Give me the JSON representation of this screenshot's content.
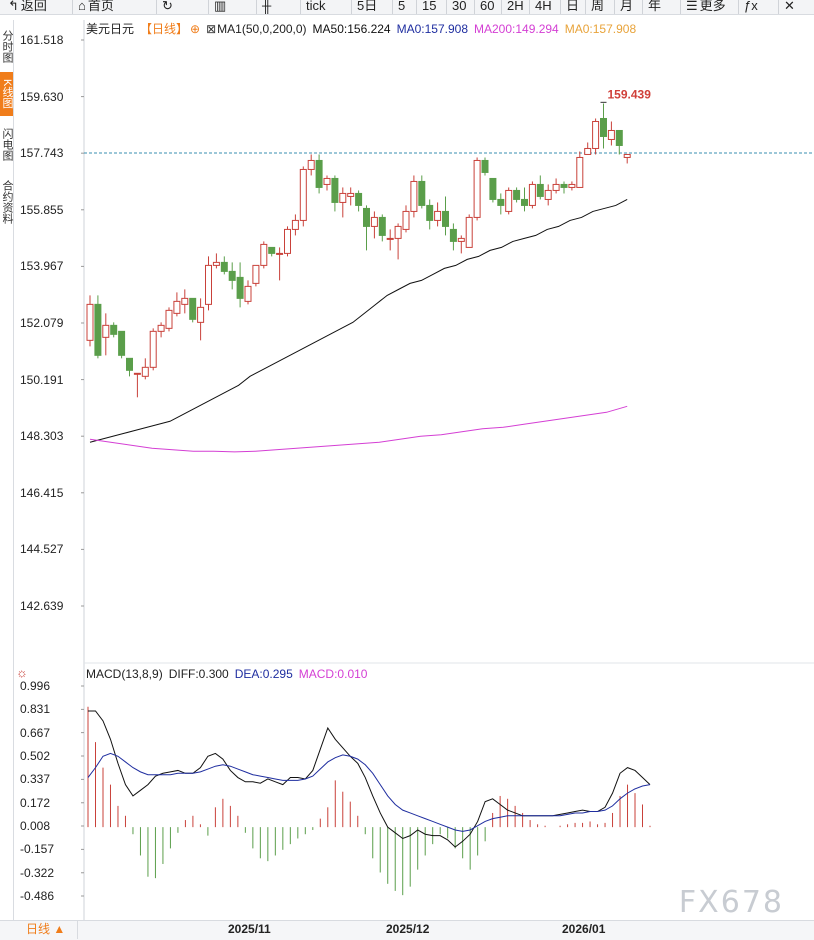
{
  "toolbar": {
    "items": [
      {
        "label": "返回",
        "icon": "back-arrow-icon"
      },
      {
        "label": "首页",
        "icon": "home-icon"
      },
      {
        "label": "",
        "icon": "refresh-icon"
      },
      {
        "label": "",
        "icon": "bar-chart-icon"
      },
      {
        "label": "",
        "icon": "candlestick-icon"
      },
      {
        "label": "tick"
      },
      {
        "label": "5日"
      },
      {
        "label": "5"
      },
      {
        "label": "15"
      },
      {
        "label": "30"
      },
      {
        "label": "60"
      },
      {
        "label": "2H"
      },
      {
        "label": "4H"
      },
      {
        "label": "日"
      },
      {
        "label": "周"
      },
      {
        "label": "月"
      },
      {
        "label": "年"
      },
      {
        "label": "更多",
        "icon": "menu-icon"
      },
      {
        "label": "",
        "icon": "formula-icon"
      },
      {
        "label": "",
        "icon": "close-icon"
      }
    ]
  },
  "side_tabs": [
    "分时图",
    "K线图",
    "闪电图",
    "合约资料"
  ],
  "legend": {
    "symbol": "美元日元",
    "period": "【日线】",
    "indicator": "MA1(50,0,200,0)",
    "ma50": "MA50:156.224",
    "ma0": "MA0:157.908",
    "ma200": "MA200:149.294",
    "ma0b": "MA0:157.908"
  },
  "macd_legend": {
    "name": "MACD(13,8,9)",
    "diff": "DIFF:0.300",
    "dea": "DEA:0.295",
    "macd": "MACD:0.010"
  },
  "bottom": {
    "period_button": "日线 ▲",
    "watermark": "FX678"
  },
  "colors": {
    "up": "#c9413a",
    "down": "#5a9e4a",
    "ma50": "#111111",
    "ma200": "#d43fd4",
    "dea": "#1f2ea0",
    "macd": "#d43fd4",
    "accent": "#f07d1a",
    "current_price_line": "#3a8fb0"
  },
  "chart_data": [
    {
      "type": "candlestick",
      "title": "美元日元【日线】",
      "y_ticks": [
        "161.518",
        "159.630",
        "157.743",
        "155.855",
        "153.967",
        "152.079",
        "150.191",
        "148.303",
        "146.415",
        "144.527",
        "142.639"
      ],
      "x_tick_labels": [
        "2025/11",
        "2025/12",
        "2026/01"
      ],
      "ylim": [
        141.5,
        162.2
      ],
      "high_annotation": "159.439",
      "current_price": 157.75,
      "candles": [
        {
          "o": 151.5,
          "h": 153.0,
          "l": 151.3,
          "c": 152.7
        },
        {
          "o": 152.7,
          "h": 153.0,
          "l": 150.9,
          "c": 151.0
        },
        {
          "o": 151.6,
          "h": 152.4,
          "l": 151.0,
          "c": 152.0
        },
        {
          "o": 152.0,
          "h": 152.1,
          "l": 151.6,
          "c": 151.7
        },
        {
          "o": 151.8,
          "h": 151.8,
          "l": 150.9,
          "c": 151.0
        },
        {
          "o": 150.9,
          "h": 150.9,
          "l": 150.3,
          "c": 150.5
        },
        {
          "o": 150.4,
          "h": 150.4,
          "l": 149.6,
          "c": 150.4
        },
        {
          "o": 150.3,
          "h": 150.9,
          "l": 150.2,
          "c": 150.6
        },
        {
          "o": 150.6,
          "h": 151.9,
          "l": 150.5,
          "c": 151.8
        },
        {
          "o": 151.8,
          "h": 152.1,
          "l": 151.6,
          "c": 152.0
        },
        {
          "o": 151.9,
          "h": 152.6,
          "l": 151.8,
          "c": 152.5
        },
        {
          "o": 152.4,
          "h": 153.1,
          "l": 152.3,
          "c": 152.8
        },
        {
          "o": 152.7,
          "h": 153.2,
          "l": 152.4,
          "c": 152.9
        },
        {
          "o": 152.9,
          "h": 152.9,
          "l": 152.1,
          "c": 152.2
        },
        {
          "o": 152.1,
          "h": 152.9,
          "l": 151.5,
          "c": 152.6
        },
        {
          "o": 152.7,
          "h": 154.3,
          "l": 152.5,
          "c": 154.0
        },
        {
          "o": 154.0,
          "h": 154.4,
          "l": 153.9,
          "c": 154.1
        },
        {
          "o": 154.1,
          "h": 154.3,
          "l": 153.7,
          "c": 153.8
        },
        {
          "o": 153.8,
          "h": 154.1,
          "l": 153.2,
          "c": 153.5
        },
        {
          "o": 153.6,
          "h": 154.1,
          "l": 152.6,
          "c": 152.9
        },
        {
          "o": 152.8,
          "h": 153.5,
          "l": 152.7,
          "c": 153.3
        },
        {
          "o": 153.4,
          "h": 154.0,
          "l": 153.3,
          "c": 154.0
        },
        {
          "o": 154.0,
          "h": 154.8,
          "l": 153.9,
          "c": 154.7
        },
        {
          "o": 154.6,
          "h": 154.6,
          "l": 154.3,
          "c": 154.4
        },
        {
          "o": 154.4,
          "h": 154.6,
          "l": 153.5,
          "c": 154.4
        },
        {
          "o": 154.4,
          "h": 155.3,
          "l": 154.3,
          "c": 155.2
        },
        {
          "o": 155.2,
          "h": 155.7,
          "l": 155.0,
          "c": 155.5
        },
        {
          "o": 155.5,
          "h": 157.3,
          "l": 155.3,
          "c": 157.2
        },
        {
          "o": 157.2,
          "h": 157.7,
          "l": 157.0,
          "c": 157.5
        },
        {
          "o": 157.5,
          "h": 157.7,
          "l": 156.4,
          "c": 156.6
        },
        {
          "o": 156.7,
          "h": 157.0,
          "l": 156.5,
          "c": 156.9
        },
        {
          "o": 156.9,
          "h": 157.0,
          "l": 155.8,
          "c": 156.1
        },
        {
          "o": 156.1,
          "h": 156.6,
          "l": 155.6,
          "c": 156.4
        },
        {
          "o": 156.3,
          "h": 156.6,
          "l": 156.0,
          "c": 156.4
        },
        {
          "o": 156.4,
          "h": 156.5,
          "l": 155.8,
          "c": 156.0
        },
        {
          "o": 155.9,
          "h": 156.0,
          "l": 154.5,
          "c": 155.3
        },
        {
          "o": 155.3,
          "h": 155.8,
          "l": 154.9,
          "c": 155.6
        },
        {
          "o": 155.6,
          "h": 155.7,
          "l": 154.8,
          "c": 155.0
        },
        {
          "o": 154.9,
          "h": 155.2,
          "l": 154.5,
          "c": 154.9
        },
        {
          "o": 154.9,
          "h": 155.4,
          "l": 154.2,
          "c": 155.3
        },
        {
          "o": 155.2,
          "h": 156.0,
          "l": 155.1,
          "c": 155.8
        },
        {
          "o": 155.8,
          "h": 157.0,
          "l": 155.6,
          "c": 156.8
        },
        {
          "o": 156.8,
          "h": 157.0,
          "l": 155.9,
          "c": 156.0
        },
        {
          "o": 156.0,
          "h": 156.2,
          "l": 155.2,
          "c": 155.5
        },
        {
          "o": 155.5,
          "h": 156.1,
          "l": 155.3,
          "c": 155.8
        },
        {
          "o": 155.8,
          "h": 156.3,
          "l": 155.0,
          "c": 155.3
        },
        {
          "o": 155.2,
          "h": 155.4,
          "l": 154.5,
          "c": 154.8
        },
        {
          "o": 154.8,
          "h": 155.0,
          "l": 154.4,
          "c": 154.9
        },
        {
          "o": 154.6,
          "h": 155.7,
          "l": 154.6,
          "c": 155.6
        },
        {
          "o": 155.6,
          "h": 157.6,
          "l": 155.5,
          "c": 157.5
        },
        {
          "o": 157.5,
          "h": 157.6,
          "l": 157.0,
          "c": 157.1
        },
        {
          "o": 156.9,
          "h": 156.9,
          "l": 156.1,
          "c": 156.2
        },
        {
          "o": 156.2,
          "h": 156.4,
          "l": 155.7,
          "c": 156.0
        },
        {
          "o": 155.8,
          "h": 156.6,
          "l": 155.7,
          "c": 156.5
        },
        {
          "o": 156.5,
          "h": 156.6,
          "l": 156.1,
          "c": 156.2
        },
        {
          "o": 156.2,
          "h": 156.6,
          "l": 155.8,
          "c": 156.0
        },
        {
          "o": 156.0,
          "h": 156.8,
          "l": 155.9,
          "c": 156.7
        },
        {
          "o": 156.7,
          "h": 157.0,
          "l": 156.2,
          "c": 156.3
        },
        {
          "o": 156.2,
          "h": 156.7,
          "l": 156.0,
          "c": 156.5
        },
        {
          "o": 156.5,
          "h": 156.9,
          "l": 156.4,
          "c": 156.7
        },
        {
          "o": 156.7,
          "h": 156.8,
          "l": 156.4,
          "c": 156.6
        },
        {
          "o": 156.6,
          "h": 156.8,
          "l": 156.5,
          "c": 156.7
        },
        {
          "o": 156.6,
          "h": 157.8,
          "l": 156.6,
          "c": 157.6
        },
        {
          "o": 157.7,
          "h": 158.1,
          "l": 157.7,
          "c": 157.9
        },
        {
          "o": 157.9,
          "h": 158.9,
          "l": 157.7,
          "c": 158.8
        },
        {
          "o": 158.9,
          "h": 159.4,
          "l": 157.9,
          "c": 158.3
        },
        {
          "o": 158.2,
          "h": 158.8,
          "l": 158.0,
          "c": 158.5
        },
        {
          "o": 158.5,
          "h": 158.5,
          "l": 157.7,
          "c": 158.0
        },
        {
          "o": 157.6,
          "h": 157.7,
          "l": 157.4,
          "c": 157.7
        }
      ],
      "ma50": [
        148.1,
        148.2,
        148.3,
        148.4,
        148.5,
        148.6,
        148.7,
        148.8,
        149.0,
        149.2,
        149.4,
        149.6,
        149.8,
        150.0,
        150.3,
        150.5,
        150.7,
        150.9,
        151.1,
        151.3,
        151.5,
        151.7,
        151.9,
        152.1,
        152.4,
        152.7,
        153.0,
        153.2,
        153.4,
        153.5,
        153.7,
        153.9,
        154.0,
        154.2,
        154.3,
        154.5,
        154.6,
        154.8,
        154.9,
        155.0,
        155.2,
        155.3,
        155.5,
        155.6,
        155.8,
        155.9,
        156.0,
        156.2
      ],
      "ma200": [
        148.2,
        148.1,
        148.0,
        147.9,
        147.85,
        147.8,
        147.8,
        147.78,
        147.8,
        147.85,
        147.9,
        147.95,
        148.0,
        148.05,
        148.1,
        148.2,
        148.3,
        148.35,
        148.45,
        148.55,
        148.6,
        148.7,
        148.8,
        148.9,
        149.0,
        149.1,
        149.3
      ]
    },
    {
      "type": "bar",
      "title": "MACD(13,8,9)",
      "y_ticks": [
        "0.996",
        "0.831",
        "0.667",
        "0.502",
        "0.337",
        "0.172",
        "0.008",
        "-0.157",
        "-0.322",
        "-0.486"
      ],
      "ylim": [
        -0.6,
        1.1
      ],
      "macd": [
        0.85,
        0.6,
        0.42,
        0.3,
        0.15,
        0.08,
        -0.05,
        -0.2,
        -0.35,
        -0.36,
        -0.26,
        -0.15,
        -0.04,
        0.05,
        0.08,
        0.02,
        -0.06,
        0.14,
        0.2,
        0.15,
        0.08,
        -0.04,
        -0.15,
        -0.22,
        -0.24,
        -0.2,
        -0.16,
        -0.12,
        -0.08,
        -0.05,
        -0.02,
        0.06,
        0.14,
        0.33,
        0.25,
        0.18,
        0.08,
        -0.05,
        -0.22,
        -0.32,
        -0.4,
        -0.45,
        -0.48,
        -0.42,
        -0.3,
        -0.2,
        -0.12,
        -0.05,
        -0.08,
        -0.15,
        -0.22,
        -0.3,
        -0.2,
        -0.1,
        0.1,
        0.22,
        0.2,
        0.15,
        0.1,
        0.05,
        0.02,
        0.01,
        0.0,
        0.01,
        0.02,
        0.03,
        0.03,
        0.04,
        0.02,
        0.03,
        0.1,
        0.22,
        0.3,
        0.24,
        0.16,
        0.01
      ],
      "diff": [
        0.82,
        0.82,
        0.75,
        0.62,
        0.45,
        0.3,
        0.22,
        0.26,
        0.3,
        0.36,
        0.38,
        0.39,
        0.4,
        0.38,
        0.38,
        0.42,
        0.5,
        0.52,
        0.48,
        0.4,
        0.35,
        0.32,
        0.32,
        0.31,
        0.34,
        0.32,
        0.3,
        0.35,
        0.35,
        0.34,
        0.4,
        0.55,
        0.7,
        0.62,
        0.56,
        0.5,
        0.45,
        0.35,
        0.22,
        0.1,
        0.0,
        -0.04,
        -0.08,
        -0.06,
        -0.02,
        -0.05,
        -0.06,
        -0.06,
        -0.09,
        -0.14,
        -0.1,
        -0.05,
        0.04,
        0.18,
        0.2,
        0.16,
        0.12,
        0.1,
        0.08,
        0.08,
        0.08,
        0.08,
        0.08,
        0.09,
        0.1,
        0.11,
        0.12,
        0.11,
        0.11,
        0.14,
        0.24,
        0.38,
        0.42,
        0.4,
        0.35,
        0.3
      ],
      "dea": [
        0.35,
        0.42,
        0.5,
        0.52,
        0.5,
        0.46,
        0.42,
        0.39,
        0.37,
        0.37,
        0.37,
        0.37,
        0.38,
        0.38,
        0.38,
        0.39,
        0.41,
        0.43,
        0.44,
        0.43,
        0.41,
        0.39,
        0.37,
        0.36,
        0.35,
        0.34,
        0.33,
        0.33,
        0.33,
        0.34,
        0.36,
        0.41,
        0.46,
        0.49,
        0.51,
        0.5,
        0.48,
        0.44,
        0.38,
        0.3,
        0.22,
        0.16,
        0.12,
        0.1,
        0.08,
        0.06,
        0.04,
        0.02,
        0.0,
        -0.02,
        -0.03,
        -0.02,
        0.01,
        0.04,
        0.06,
        0.07,
        0.08,
        0.08,
        0.08,
        0.08,
        0.08,
        0.08,
        0.08,
        0.08,
        0.09,
        0.1,
        0.1,
        0.11,
        0.11,
        0.12,
        0.15,
        0.2,
        0.24,
        0.27,
        0.29,
        0.3
      ]
    }
  ]
}
